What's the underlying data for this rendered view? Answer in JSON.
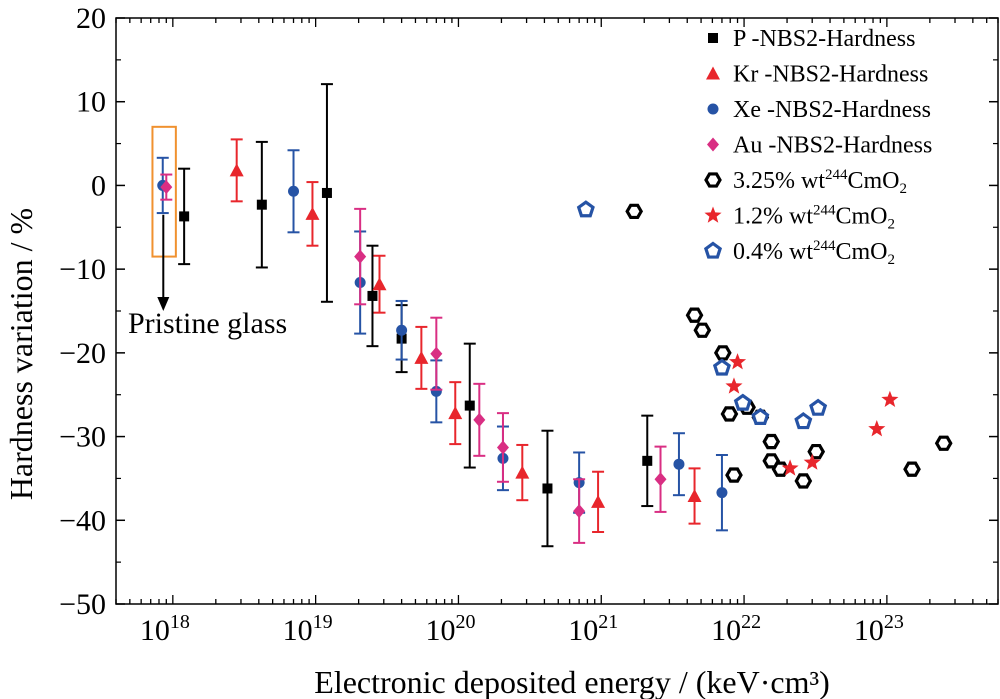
{
  "chart_data": {
    "type": "scatter",
    "xlabel": "Electronic deposited  energy / (keV·cm³)",
    "ylabel": "Hardness variation / %",
    "xscale": "log",
    "xlim": [
      4e+17,
      6e+23
    ],
    "ylim": [
      -50,
      20
    ],
    "y_ticks": [
      -50,
      -40,
      -30,
      -20,
      -10,
      0,
      10,
      20
    ],
    "x_ticks": [
      {
        "base": "10",
        "exp": "18",
        "value": 1e+18
      },
      {
        "base": "10",
        "exp": "19",
        "value": 1e+19
      },
      {
        "base": "10",
        "exp": "20",
        "value": 1e+20
      },
      {
        "base": "10",
        "exp": "21",
        "value": 1e+21
      },
      {
        "base": "10",
        "exp": "22",
        "value": 1e+22
      },
      {
        "base": "10",
        "exp": "23",
        "value": 1e+23
      }
    ],
    "legend_position": "top-right",
    "grid": false,
    "annotation": {
      "text": "Pristine glass",
      "box_x": [
        7.2e+17,
        1.05e+18
      ],
      "box_y": [
        -8.5,
        7
      ],
      "arrow_from": -3.5,
      "arrow_to": -15
    },
    "series": [
      {
        "name": "P -NBS2-Hardness",
        "marker": "square",
        "color": "#000000",
        "errorbars": true,
        "points": [
          {
            "x": 1.2e+18,
            "y": -3.7,
            "err": 5.7
          },
          {
            "x": 4.2e+18,
            "y": -2.3,
            "err": 7.5
          },
          {
            "x": 1.2e+19,
            "y": -0.9,
            "err": 13
          },
          {
            "x": 2.5e+19,
            "y": -13.2,
            "err": 6
          },
          {
            "x": 4e+19,
            "y": -18.3,
            "err": 4
          },
          {
            "x": 1.2e+20,
            "y": -26.3,
            "err": 7.4
          },
          {
            "x": 4.2e+20,
            "y": -36.2,
            "err": 6.9
          },
          {
            "x": 2.1e+21,
            "y": -32.9,
            "err": 5.4
          }
        ]
      },
      {
        "name": "Kr -NBS2-Hardness",
        "marker": "triangle",
        "color": "#e8262c",
        "errorbars": true,
        "points": [
          {
            "x": 2.8e+18,
            "y": 1.8,
            "err": 3.7
          },
          {
            "x": 9.5e+18,
            "y": -3.4,
            "err": 3.8
          },
          {
            "x": 2.8e+19,
            "y": -11.8,
            "err": 3.4
          },
          {
            "x": 5.5e+19,
            "y": -20.6,
            "err": 3.7
          },
          {
            "x": 9.5e+19,
            "y": -27.2,
            "err": 3.7
          },
          {
            "x": 2.8e+20,
            "y": -34.3,
            "err": 3.3
          },
          {
            "x": 9.5e+20,
            "y": -37.8,
            "err": 3.6
          },
          {
            "x": 4.5e+21,
            "y": -37.1,
            "err": 3.3
          }
        ]
      },
      {
        "name": "Xe -NBS2-Hardness",
        "marker": "circle",
        "color": "#2653a5",
        "errorbars": true,
        "points": [
          {
            "x": 8.5e+17,
            "y": 0.0,
            "err": 3.3
          },
          {
            "x": 7e+18,
            "y": -0.7,
            "err": 4.9
          },
          {
            "x": 2.05e+19,
            "y": -11.6,
            "err": 6.1
          },
          {
            "x": 4e+19,
            "y": -17.3,
            "err": 3.5
          },
          {
            "x": 7e+19,
            "y": -24.6,
            "err": 3.7
          },
          {
            "x": 2.05e+20,
            "y": -32.6,
            "err": 3.8
          },
          {
            "x": 7e+20,
            "y": -35.5,
            "err": 3.6
          },
          {
            "x": 3.5e+21,
            "y": -33.3,
            "err": 3.7
          },
          {
            "x": 7e+21,
            "y": -36.7,
            "err": 4.5
          }
        ]
      },
      {
        "name": "Au -NBS2-Hardness",
        "marker": "diamond",
        "color": "#d92e83",
        "errorbars": true,
        "points": [
          {
            "x": 9e+17,
            "y": -0.2,
            "err": 1.5
          },
          {
            "x": 2.05e+19,
            "y": -8.5,
            "err": 5.7
          },
          {
            "x": 7e+19,
            "y": -20.1,
            "err": 4.3
          },
          {
            "x": 1.4e+20,
            "y": -28.0,
            "err": 4.3
          },
          {
            "x": 2.05e+20,
            "y": -31.3,
            "err": 4.1
          },
          {
            "x": 7e+20,
            "y": -38.9,
            "err": 3.8
          },
          {
            "x": 2.6e+21,
            "y": -35.1,
            "err": 3.9
          }
        ]
      },
      {
        "name": "3.25% wt²⁴⁴CmO₂",
        "legend_main": "3.25% wt",
        "legend_sup": "244",
        "legend_rest": "CmO",
        "legend_sub": "2",
        "marker": "hexagon-open",
        "color": "#000000",
        "errorbars": false,
        "points": [
          {
            "x": 1.7e+21,
            "y": -3.1
          },
          {
            "x": 4.5e+21,
            "y": -15.5
          },
          {
            "x": 5.1e+21,
            "y": -17.3
          },
          {
            "x": 7.1e+21,
            "y": -20.0
          },
          {
            "x": 7.9e+21,
            "y": -27.3
          },
          {
            "x": 8.5e+21,
            "y": -34.6
          },
          {
            "x": 1.05e+22,
            "y": -26.5
          },
          {
            "x": 1.3e+22,
            "y": -27.7
          },
          {
            "x": 1.55e+22,
            "y": -30.6
          },
          {
            "x": 1.55e+22,
            "y": -32.9
          },
          {
            "x": 1.8e+22,
            "y": -33.9
          },
          {
            "x": 2.6e+22,
            "y": -35.3
          },
          {
            "x": 3.2e+22,
            "y": -31.8
          },
          {
            "x": 1.5e+23,
            "y": -33.9
          },
          {
            "x": 2.5e+23,
            "y": -30.8
          }
        ]
      },
      {
        "name": "1.2% wt²⁴⁴CmO₂",
        "legend_main": "1.2% wt",
        "legend_sup": "244",
        "legend_rest": "CmO",
        "legend_sub": "2",
        "marker": "star",
        "color": "#e8262c",
        "errorbars": false,
        "points": [
          {
            "x": 9e+21,
            "y": -21.1
          },
          {
            "x": 8.5e+21,
            "y": -24.0
          },
          {
            "x": 2.1e+22,
            "y": -33.8
          },
          {
            "x": 3e+22,
            "y": -33.1
          },
          {
            "x": 8.5e+22,
            "y": -29.1
          },
          {
            "x": 1.05e+23,
            "y": -25.6
          }
        ]
      },
      {
        "name": "0.4% wt²⁴⁴CmO₂",
        "legend_main": "0.4% wt",
        "legend_sup": "244",
        "legend_rest": "CmO",
        "legend_sub": "2",
        "marker": "pentagon-open",
        "color": "#2653a5",
        "errorbars": false,
        "points": [
          {
            "x": 7.8e+20,
            "y": -2.9
          },
          {
            "x": 7e+21,
            "y": -21.8
          },
          {
            "x": 9.8e+21,
            "y": -26.0
          },
          {
            "x": 1.3e+22,
            "y": -27.7
          },
          {
            "x": 2.6e+22,
            "y": -28.2
          },
          {
            "x": 3.3e+22,
            "y": -26.6
          }
        ]
      }
    ]
  }
}
